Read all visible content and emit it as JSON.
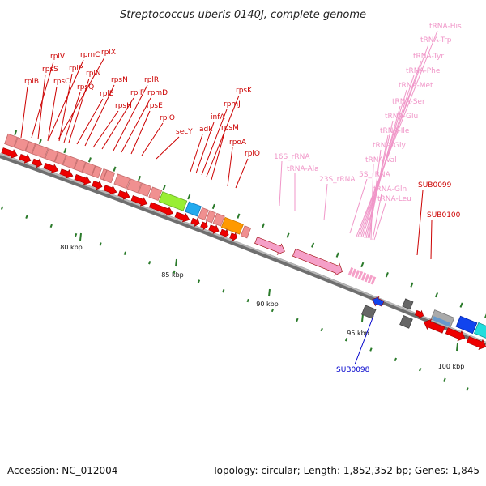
{
  "title": "Streptococcus uberis 0140J, complete genome",
  "footer": {
    "accession": "Accession: NC_012004",
    "topology": "Topology: circular; Length: 1,852,352 bp; Genes: 1,845"
  },
  "colors": {
    "cds": "#ee0000",
    "cds_outline": "#aa0000",
    "ribosomal_block": "#f09090",
    "rna": "#f5a0c8",
    "rna_label": "#f096c8",
    "gene_label": "#cc0000",
    "highlight_label": "#0000cc",
    "backbone": "#888888",
    "tick": "#2a7a2a",
    "lime_gene": "#99ee33",
    "cyan_gene": "#22aaee",
    "orange_gene": "#ff9900",
    "gray_gene": "#777777",
    "blue_gene": "#1144ee",
    "turquoise_gene": "#22dddd"
  },
  "kbp_labels": [
    "80 kbp",
    "85 kbp",
    "90 kbp",
    "95 kbp",
    "100 kbp"
  ],
  "gene_labels": [
    "rplB",
    "rplV",
    "rpsS",
    "rpmC",
    "rplX",
    "rpsC",
    "rplP",
    "rpsQ",
    "rplN",
    "rplE",
    "rpsN",
    "rpsH",
    "rplF",
    "rplR",
    "rpmD",
    "rpsE",
    "rplO",
    "secY",
    "adk",
    "infA",
    "rpmJ",
    "rpsK",
    "rpsM",
    "rpoA",
    "rplQ"
  ],
  "rna_labels": [
    "16S_rRNA",
    "tRNA-Ala",
    "23S_rRNA",
    "5S_rRNA",
    "tRNA-His",
    "tRNA-Trp",
    "tRNA-Tyr",
    "tRNA-Phe",
    "tRNA-Met",
    "tRNA-Ser",
    "tRNA-Glu",
    "tRNA-Ile",
    "tRNA-Gly",
    "tRNA-Val",
    "tRNA-Gln",
    "tRNA-Leu"
  ],
  "other_labels": [
    "SUB0099",
    "SUB0100"
  ],
  "highlight_labels": [
    "SUB0098"
  ],
  "icons": [
    "forward-arrow-gene-icon",
    "reverse-arrow-gene-icon"
  ]
}
